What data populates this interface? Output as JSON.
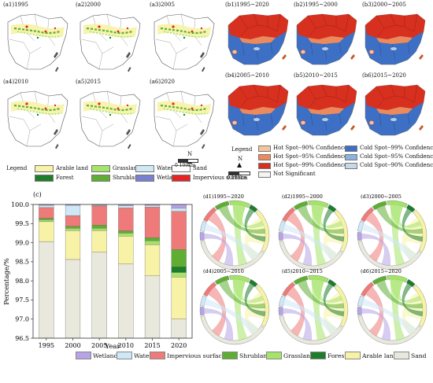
{
  "panels_a": [
    {
      "label": "(a1)1995"
    },
    {
      "label": "(a2)2000"
    },
    {
      "label": "(a3)2005"
    },
    {
      "label": "(a4)2010"
    },
    {
      "label": "(a5)2015"
    },
    {
      "label": "(a6)2020"
    }
  ],
  "panels_b": [
    {
      "label": "(b1)1995~2020"
    },
    {
      "label": "(b2)1995~2000"
    },
    {
      "label": "(b3)2000~2005"
    },
    {
      "label": "(b4)2005~2010"
    },
    {
      "label": "(b5)2010~2015"
    },
    {
      "label": "(b6)2015~2020"
    }
  ],
  "legend_a": {
    "title": "Legend",
    "items": [
      {
        "label": "Arable land",
        "color": "#f7f2a6"
      },
      {
        "label": "Grassland",
        "color": "#a6e36a"
      },
      {
        "label": "Water",
        "color": "#cfe8f7"
      },
      {
        "label": "Sand",
        "color": "#ffffff"
      },
      {
        "label": "Forest",
        "color": "#1e7d2a"
      },
      {
        "label": "Shrubland",
        "color": "#5fae33"
      },
      {
        "label": "Wetland",
        "color": "#7b7fd1"
      },
      {
        "label": "Impervious surface",
        "color": "#e52525"
      }
    ],
    "scale": "0  100km",
    "north": "N"
  },
  "legend_b": {
    "title": "Legend",
    "items": [
      {
        "label": "Hot Spot--90% Confidence",
        "color": "#f4c59c"
      },
      {
        "label": "Hot Spot--95% Confidence",
        "color": "#ec8a5c"
      },
      {
        "label": "Hot Spot--99% Confidence",
        "color": "#d7301f"
      },
      {
        "label": "Not Significant",
        "color": "#f4f4f4"
      },
      {
        "label": "Cold Spot--99% Confidence",
        "color": "#3d6fc4"
      },
      {
        "label": "Cold Spot--95% Confidence",
        "color": "#8fb2dc"
      },
      {
        "label": "Cold Spot--90% Confidence",
        "color": "#c7d8e8"
      }
    ],
    "scale": "0  100km",
    "north": "N"
  },
  "chart_data": {
    "type": "bar",
    "panel_label": "(c)",
    "categories": [
      "1995",
      "2000",
      "2005",
      "2010",
      "2015",
      "2020"
    ],
    "series": [
      {
        "name": "Sand",
        "color": "#e9e8dc",
        "values": [
          99.03,
          98.56,
          98.75,
          98.44,
          98.13,
          97.0
        ]
      },
      {
        "name": "Arable land",
        "color": "#f7f2a6",
        "values": [
          0.52,
          0.76,
          0.57,
          0.73,
          0.82,
          1.1
        ]
      },
      {
        "name": "Grassland",
        "color": "#a6e36a",
        "values": [
          0.05,
          0.06,
          0.06,
          0.08,
          0.1,
          0.12
        ]
      },
      {
        "name": "Forest",
        "color": "#1e7d2a",
        "values": [
          0.0,
          0.0,
          0.0,
          0.0,
          0.0,
          0.15
        ]
      },
      {
        "name": "Shrubland",
        "color": "#5fae33",
        "values": [
          0.04,
          0.05,
          0.08,
          0.06,
          0.08,
          0.45
        ]
      },
      {
        "name": "Impervious surface",
        "color": "#ee7a7a",
        "values": [
          0.28,
          0.28,
          0.5,
          0.6,
          0.8,
          1.0
        ]
      },
      {
        "name": "Water",
        "color": "#cfe8f7",
        "values": [
          0.06,
          0.27,
          0.02,
          0.06,
          0.05,
          0.08
        ]
      },
      {
        "name": "Wetland",
        "color": "#b7a4e6",
        "values": [
          0.02,
          0.02,
          0.02,
          0.03,
          0.02,
          0.1
        ]
      }
    ],
    "xlabel": "Year",
    "ylabel": "Percentage/%",
    "ylim": [
      96.5,
      100.0
    ],
    "yticks": [
      "96.5",
      "97.0",
      "97.5",
      "98.0",
      "98.5",
      "99.0",
      "99.5",
      "100.0"
    ]
  },
  "panels_d": [
    {
      "label": "(d1)1995~2020"
    },
    {
      "label": "(d2)1995~2000"
    },
    {
      "label": "(d3)2000~2005"
    },
    {
      "label": "(d4)2005~2010"
    },
    {
      "label": "(d5)2010~2015"
    },
    {
      "label": "(d6)2015~2020"
    }
  ],
  "bottom_legend": [
    {
      "label": "Wetland",
      "color": "#b7a4e6"
    },
    {
      "label": "Water",
      "color": "#cfe8f7"
    },
    {
      "label": "Impervious surface",
      "color": "#ee7a7a"
    },
    {
      "label": "Shrubland",
      "color": "#5fae33"
    },
    {
      "label": "Grassland",
      "color": "#a6e36a"
    },
    {
      "label": "Forest",
      "color": "#1e7d2a"
    },
    {
      "label": "Arable land",
      "color": "#f7f2a6"
    },
    {
      "label": "Sand",
      "color": "#e9e8dc"
    }
  ]
}
